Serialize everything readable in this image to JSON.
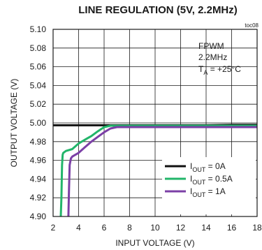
{
  "chart_data": {
    "type": "line",
    "title": "LINE REGULATION (5V, 2.2MHz)",
    "figure_tag": "toc08",
    "xlabel": "INPUT VOLTAGE (V)",
    "ylabel": "OUTPUT VOLTAGE (V)",
    "xlim": [
      2,
      18
    ],
    "ylim": [
      4.9,
      5.1
    ],
    "xticks": [
      2,
      4,
      6,
      8,
      10,
      12,
      14,
      16,
      18
    ],
    "xtick_labels": [
      "2",
      "4",
      "6",
      "8",
      "10",
      "12",
      "14",
      "16",
      "18"
    ],
    "yticks": [
      4.9,
      4.92,
      4.94,
      4.96,
      4.98,
      5.0,
      5.02,
      5.04,
      5.06,
      5.08,
      5.1
    ],
    "ytick_labels": [
      "4.90",
      "4.92",
      "4.94",
      "4.96",
      "4.98",
      "5.00",
      "5.02",
      "5.04",
      "5.06",
      "5.08",
      "5.10"
    ],
    "grid": true,
    "legend_position": "bottom-right",
    "annotation": {
      "line1": "FPWM",
      "line2": "2.2MHz",
      "line3_main": "T",
      "line3_sub": "A",
      "line3_rest": " = +25°C"
    },
    "series": [
      {
        "name": "IOUT = 0A",
        "legend_main": "I",
        "legend_sub": "OUT",
        "legend_rest": " = 0A",
        "color": "#111111",
        "x": [
          2.0,
          4.0,
          6.0,
          8.0,
          10.0,
          12.0,
          14.0,
          16.0,
          18.0
        ],
        "y": [
          4.9975,
          4.9975,
          4.9975,
          4.9975,
          4.9975,
          4.9975,
          4.9975,
          4.998,
          4.998
        ]
      },
      {
        "name": "IOUT = 0.5A",
        "legend_main": "I",
        "legend_sub": "OUT",
        "legend_rest": " = 0.5A",
        "color": "#22b56a",
        "x": [
          2.6,
          2.65,
          2.7,
          2.75,
          2.8,
          3.0,
          3.5,
          4.0,
          4.5,
          5.0,
          5.5,
          6.0,
          6.5,
          8.0,
          10.0,
          12.0,
          14.0,
          16.0,
          18.0
        ],
        "y": [
          4.9,
          4.92,
          4.955,
          4.966,
          4.968,
          4.97,
          4.972,
          4.978,
          4.982,
          4.986,
          4.991,
          4.9955,
          4.997,
          4.997,
          4.997,
          4.997,
          4.997,
          4.997,
          4.997
        ]
      },
      {
        "name": "IOUT = 1A",
        "legend_main": "I",
        "legend_sub": "OUT",
        "legend_rest": " = 1A",
        "color": "#7b3fa6",
        "x": [
          3.2,
          3.25,
          3.3,
          3.4,
          3.5,
          4.0,
          4.5,
          5.0,
          5.5,
          6.0,
          6.5,
          7.0,
          8.0,
          10.0,
          12.0,
          14.0,
          16.0,
          18.0
        ],
        "y": [
          4.9,
          4.93,
          4.955,
          4.962,
          4.964,
          4.968,
          4.974,
          4.98,
          4.985,
          4.99,
          4.994,
          4.9955,
          4.9955,
          4.9955,
          4.9955,
          4.9955,
          4.9955,
          4.9955
        ]
      }
    ]
  }
}
